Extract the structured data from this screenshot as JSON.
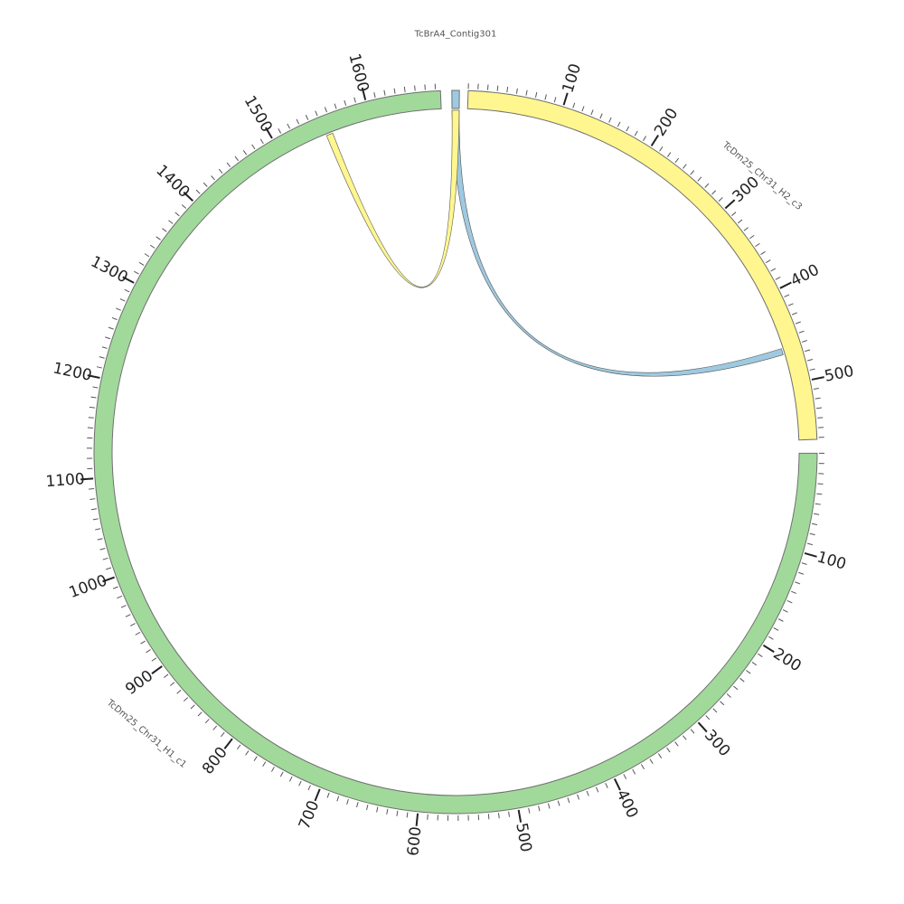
{
  "diagram": {
    "type": "circos",
    "sequences": [
      {
        "id": "s2",
        "name": "TcBrA4_Contig301",
        "length": 7,
        "color": "#9ecae1",
        "ticks": false
      },
      {
        "id": "s1",
        "name": "TcDm25_Chr31_H2_c3",
        "length": 562,
        "color": "#fff68f",
        "ticks": true
      },
      {
        "id": "s0",
        "name": "TcDm25_Chr31_H1_c1",
        "length": 1675,
        "color": "#a1d99b",
        "ticks": true
      }
    ],
    "links": [
      {
        "from": {
          "seq": "TcBrA4_Contig301",
          "start": 0,
          "end": 7
        },
        "to": {
          "seq": "TcDm25_Chr31_H2_c3",
          "start": 460,
          "end": 467
        },
        "color": "#9ecae1"
      },
      {
        "from": {
          "seq": "TcBrA4_Contig301",
          "start": 0,
          "end": 7
        },
        "to": {
          "seq": "TcDm25_Chr31_H1_c1",
          "start": 1551,
          "end": 1558
        },
        "color": "#fff68f"
      }
    ]
  }
}
